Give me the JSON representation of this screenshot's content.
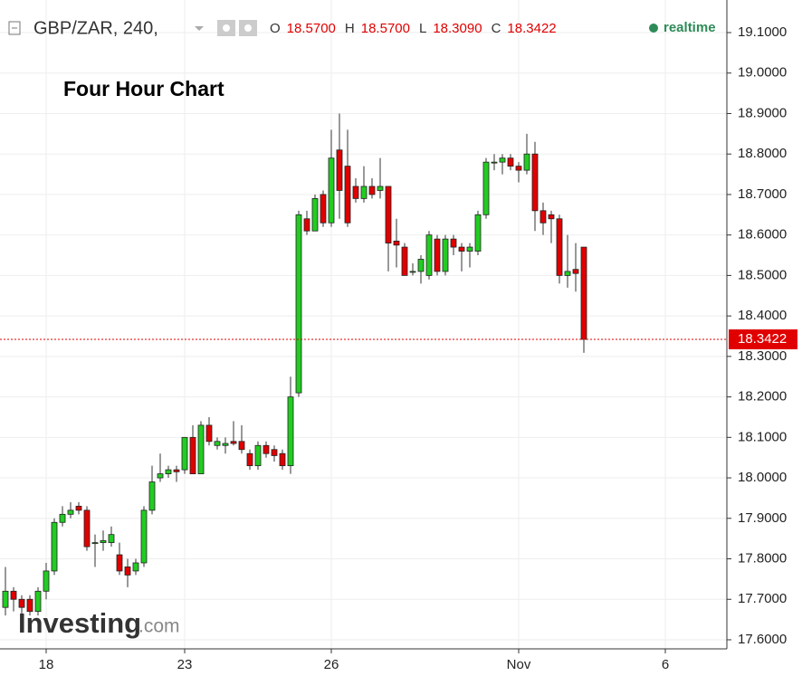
{
  "chart_data": {
    "type": "candlestick",
    "title": "GBP/ZAR, 240,",
    "ohlc_header": [
      {
        "label": "O",
        "value": "18.5700"
      },
      {
        "label": "H",
        "value": "18.5700"
      },
      {
        "label": "L",
        "value": "18.3090"
      },
      {
        "label": "C",
        "value": "18.3422"
      }
    ],
    "status": "realtime",
    "annotation": "Four Hour Chart",
    "watermark": [
      "Investing",
      ".com"
    ],
    "up_color": "#22cc22",
    "down_color": "#e00000",
    "grid": true,
    "categories": [
      null,
      null,
      null,
      null,
      null,
      "18",
      null,
      null,
      null,
      null,
      null,
      null,
      null,
      null,
      null,
      null,
      null,
      null,
      null,
      null,
      null,
      null,
      "23",
      null,
      null,
      null,
      null,
      null,
      null,
      null,
      null,
      null,
      null,
      null,
      null,
      null,
      null,
      null,
      null,
      null,
      "26",
      null,
      null,
      null,
      null,
      null,
      null,
      null,
      null,
      null,
      null,
      null,
      null,
      null,
      null,
      null,
      null,
      null,
      null,
      null,
      null,
      null,
      null,
      "Nov",
      null,
      null,
      null,
      null,
      null,
      null,
      null,
      null,
      null,
      null,
      null,
      null,
      null,
      null,
      null,
      null,
      null,
      "6",
      null,
      null,
      null,
      null,
      null,
      null,
      null
    ],
    "open": [
      17.68,
      17.72,
      17.7,
      17.7,
      17.67,
      17.72,
      17.77,
      17.89,
      17.91,
      17.93,
      17.92,
      17.84,
      17.84,
      17.84,
      17.81,
      17.78,
      17.77,
      17.79,
      17.92,
      18.0,
      18.01,
      18.02,
      18.02,
      18.1,
      18.01,
      18.13,
      18.08,
      18.08,
      18.09,
      18.09,
      18.06,
      18.03,
      18.08,
      18.07,
      18.06,
      18.03,
      18.21,
      18.64,
      18.61,
      18.7,
      18.63,
      18.81,
      18.77,
      18.72,
      18.69,
      18.72,
      18.71,
      18.72,
      18.585,
      18.57,
      18.51,
      18.51,
      18.5,
      18.59,
      18.51,
      18.59,
      18.57,
      18.56,
      18.56,
      18.65,
      18.78,
      18.78,
      18.79,
      18.77,
      18.76,
      18.8,
      18.66,
      18.65,
      18.64,
      18.5,
      18.515,
      18.57,
      null,
      null,
      null,
      null,
      null,
      null,
      null,
      null,
      null,
      null,
      null,
      null,
      null,
      null,
      null,
      null,
      null
    ],
    "high": [
      17.78,
      17.73,
      17.71,
      17.71,
      17.73,
      17.79,
      17.9,
      17.93,
      17.94,
      17.94,
      17.93,
      17.86,
      17.87,
      17.88,
      17.84,
      17.8,
      17.8,
      17.93,
      18.03,
      18.06,
      18.03,
      18.03,
      18.1,
      18.13,
      18.14,
      18.15,
      18.1,
      18.1,
      18.14,
      18.13,
      18.07,
      18.09,
      18.09,
      18.08,
      18.07,
      18.25,
      18.66,
      18.66,
      18.7,
      18.71,
      18.86,
      18.9,
      18.86,
      18.74,
      18.77,
      18.74,
      18.79,
      18.72,
      18.64,
      18.58,
      18.53,
      18.55,
      18.61,
      18.6,
      18.6,
      18.6,
      18.58,
      18.58,
      18.66,
      18.79,
      18.8,
      18.8,
      18.8,
      18.78,
      18.85,
      18.83,
      18.68,
      18.66,
      18.65,
      18.6,
      18.58,
      18.57,
      null,
      null,
      null,
      null,
      null,
      null,
      null,
      null,
      null,
      null,
      null,
      null,
      null,
      null,
      null,
      null,
      null
    ],
    "low": [
      17.66,
      17.67,
      17.66,
      17.66,
      17.66,
      17.7,
      17.76,
      17.88,
      17.9,
      17.91,
      17.82,
      17.78,
      17.82,
      17.83,
      17.76,
      17.73,
      17.76,
      17.78,
      17.91,
      17.99,
      18.0,
      17.99,
      18.01,
      18.01,
      18.01,
      18.08,
      18.07,
      18.06,
      18.08,
      18.06,
      18.02,
      18.02,
      18.05,
      18.04,
      18.02,
      18.01,
      18.2,
      18.6,
      18.61,
      18.62,
      18.62,
      18.64,
      18.62,
      18.68,
      18.68,
      18.69,
      18.69,
      18.51,
      18.52,
      18.5,
      18.5,
      18.48,
      18.49,
      18.5,
      18.5,
      18.55,
      18.51,
      18.52,
      18.55,
      18.64,
      18.76,
      18.75,
      18.76,
      18.73,
      18.75,
      18.61,
      18.6,
      18.58,
      18.48,
      18.47,
      18.46,
      18.309,
      null,
      null,
      null,
      null,
      null,
      null,
      null,
      null,
      null,
      null,
      null,
      null,
      null,
      null,
      null,
      null,
      null
    ],
    "close": [
      17.72,
      17.7,
      17.68,
      17.67,
      17.72,
      17.77,
      17.89,
      17.91,
      17.92,
      17.92,
      17.83,
      17.84,
      17.845,
      17.86,
      17.77,
      17.76,
      17.79,
      17.92,
      17.99,
      18.01,
      18.02,
      18.015,
      18.1,
      18.01,
      18.13,
      18.09,
      18.09,
      18.085,
      18.085,
      18.07,
      18.03,
      18.08,
      18.06,
      18.055,
      18.03,
      18.2,
      18.65,
      18.61,
      18.69,
      18.63,
      18.79,
      18.71,
      18.63,
      18.69,
      18.72,
      18.7,
      18.72,
      18.58,
      18.575,
      18.5,
      18.51,
      18.54,
      18.6,
      18.51,
      18.59,
      18.57,
      18.56,
      18.57,
      18.65,
      18.78,
      18.78,
      18.79,
      18.77,
      18.76,
      18.8,
      18.66,
      18.63,
      18.64,
      18.5,
      18.51,
      18.505,
      18.3422,
      null,
      null,
      null,
      null,
      null,
      null,
      null,
      null,
      null,
      null,
      null,
      null,
      null,
      null,
      null,
      null,
      null
    ],
    "last_price": {
      "value": 18.3422,
      "label": "18.3422"
    },
    "last_price_color": "#e00000",
    "ylim": [
      17.5776,
      19.1805
    ],
    "yticks": [
      {
        "value": 17.6,
        "label": "17.6000"
      },
      {
        "value": 17.7,
        "label": "17.7000"
      },
      {
        "value": 17.8,
        "label": "17.8000"
      },
      {
        "value": 17.9,
        "label": "17.9000"
      },
      {
        "value": 18.0,
        "label": "18.0000"
      },
      {
        "value": 18.1,
        "label": "18.1000"
      },
      {
        "value": 18.2,
        "label": "18.2000"
      },
      {
        "value": 18.3,
        "label": "18.3000"
      },
      {
        "value": 18.4,
        "label": "18.4000"
      },
      {
        "value": 18.5,
        "label": "18.5000"
      },
      {
        "value": 18.6,
        "label": "18.6000"
      },
      {
        "value": 18.7,
        "label": "18.7000"
      },
      {
        "value": 18.8,
        "label": "18.8000"
      },
      {
        "value": 18.9,
        "label": "18.9000"
      },
      {
        "value": 19.0,
        "label": "19.0000"
      },
      {
        "value": 19.1,
        "label": "19.1000"
      }
    ]
  }
}
